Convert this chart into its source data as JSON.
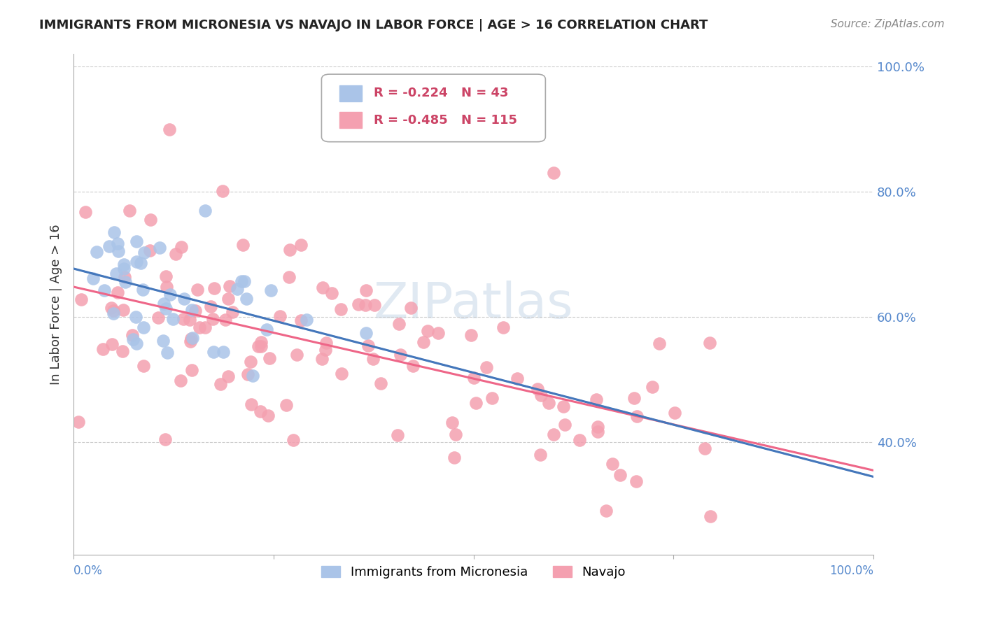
{
  "title": "IMMIGRANTS FROM MICRONESIA VS NAVAJO IN LABOR FORCE | AGE > 16 CORRELATION CHART",
  "source": "Source: ZipAtlas.com",
  "ylabel": "In Labor Force | Age > 16",
  "xlim": [
    0.0,
    1.0
  ],
  "ylim": [
    0.22,
    1.02
  ],
  "yticks": [
    0.4,
    0.6,
    0.8,
    1.0
  ],
  "ytick_labels": [
    "40.0%",
    "60.0%",
    "80.0%",
    "100.0%"
  ],
  "grid_color": "#cccccc",
  "background_color": "#ffffff",
  "legend_r1": "-0.224",
  "legend_n1": "43",
  "legend_r2": "-0.485",
  "legend_n2": "115",
  "micronesia_color": "#aac4e8",
  "navajo_color": "#f4a0b0",
  "trend_micronesia_color": "#4477bb",
  "trend_navajo_color": "#ee6688",
  "axis_label_color": "#5588cc",
  "title_color": "#222222",
  "source_color": "#888888",
  "watermark_color": "#c8d8e8"
}
